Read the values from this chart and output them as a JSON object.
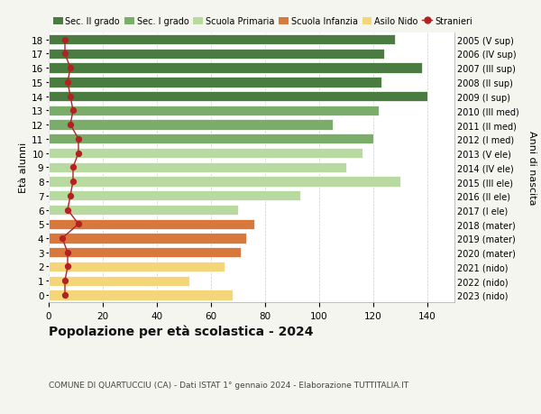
{
  "ages": [
    18,
    17,
    16,
    15,
    14,
    13,
    12,
    11,
    10,
    9,
    8,
    7,
    6,
    5,
    4,
    3,
    2,
    1,
    0
  ],
  "years": [
    "2005 (V sup)",
    "2006 (IV sup)",
    "2007 (III sup)",
    "2008 (II sup)",
    "2009 (I sup)",
    "2010 (III med)",
    "2011 (II med)",
    "2012 (I med)",
    "2013 (V ele)",
    "2014 (IV ele)",
    "2015 (III ele)",
    "2016 (II ele)",
    "2017 (I ele)",
    "2018 (mater)",
    "2019 (mater)",
    "2020 (mater)",
    "2021 (nido)",
    "2022 (nido)",
    "2023 (nido)"
  ],
  "values": [
    128,
    124,
    138,
    123,
    140,
    122,
    105,
    120,
    116,
    110,
    130,
    93,
    70,
    76,
    73,
    71,
    65,
    52,
    68
  ],
  "stranieri": [
    6,
    6,
    8,
    7,
    8,
    9,
    8,
    11,
    11,
    9,
    9,
    8,
    7,
    11,
    5,
    7,
    7,
    6,
    6
  ],
  "colors": {
    "sec2": "#4a7c42",
    "sec1": "#7aac6a",
    "primaria": "#b8d9a0",
    "infanzia": "#d9783c",
    "nido": "#f5d57a",
    "stranieri": "#b22222"
  },
  "bar_colors": [
    "#4a7c42",
    "#4a7c42",
    "#4a7c42",
    "#4a7c42",
    "#4a7c42",
    "#7aac6a",
    "#7aac6a",
    "#7aac6a",
    "#b8d9a0",
    "#b8d9a0",
    "#b8d9a0",
    "#b8d9a0",
    "#b8d9a0",
    "#d9783c",
    "#d9783c",
    "#d9783c",
    "#f5d57a",
    "#f5d57a",
    "#f5d57a"
  ],
  "xlim": [
    0,
    150
  ],
  "xticks": [
    0,
    20,
    40,
    60,
    80,
    100,
    120,
    140
  ],
  "ylabel_left": "Età alunni",
  "ylabel_right": "Anni di nascita",
  "title": "Popolazione per età scolastica - 2024",
  "subtitle": "COMUNE DI QUARTUCCIU (CA) - Dati ISTAT 1° gennaio 2024 - Elaborazione TUTTITALIA.IT",
  "legend_labels": [
    "Sec. II grado",
    "Sec. I grado",
    "Scuola Primaria",
    "Scuola Infanzia",
    "Asilo Nido",
    "Stranieri"
  ],
  "legend_colors": [
    "#4a7c42",
    "#7aac6a",
    "#b8d9a0",
    "#d9783c",
    "#f5d57a",
    "#b22222"
  ],
  "bg_color": "#f5f5f0",
  "bar_bg": "#ffffff",
  "grid_color": "#cccccc"
}
